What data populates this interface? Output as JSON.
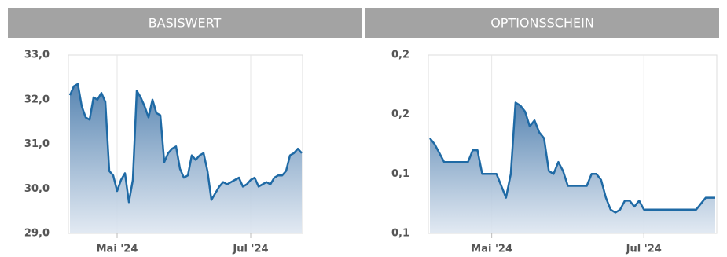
{
  "header": {
    "tabs": [
      "BASISWERT",
      "OPTIONSSCHEIN"
    ]
  },
  "chart_data": [
    {
      "type": "area",
      "color": "#1f6aa5",
      "grid": true,
      "categories": [
        null,
        null,
        null,
        null,
        null,
        null,
        null,
        null,
        null,
        null,
        null,
        null,
        "Mai '24",
        null,
        null,
        null,
        null,
        null,
        null,
        null,
        null,
        null,
        null,
        null,
        null,
        null,
        null,
        null,
        null,
        null,
        null,
        null,
        null,
        null,
        null,
        null,
        null,
        null,
        null,
        null,
        null,
        null,
        null,
        null,
        null,
        null,
        "Jul '24",
        null,
        null,
        null,
        null,
        null,
        null,
        null,
        null,
        null,
        null,
        null,
        null,
        null
      ],
      "values": [
        32.1,
        32.3,
        32.35,
        31.85,
        31.6,
        31.55,
        32.05,
        32.0,
        32.15,
        31.95,
        30.4,
        30.3,
        29.95,
        30.2,
        30.35,
        29.7,
        30.2,
        32.2,
        32.05,
        31.85,
        31.6,
        32.0,
        31.7,
        31.65,
        30.6,
        30.8,
        30.9,
        30.95,
        30.45,
        30.25,
        30.3,
        30.75,
        30.65,
        30.75,
        30.8,
        30.4,
        29.75,
        29.9,
        30.05,
        30.15,
        30.1,
        30.15,
        30.2,
        30.25,
        30.05,
        30.1,
        30.2,
        30.25,
        30.05,
        30.1,
        30.15,
        30.1,
        30.25,
        30.3,
        30.3,
        30.4,
        30.75,
        30.8,
        30.9,
        30.8
      ],
      "ylim": [
        29,
        33
      ],
      "yticks": [
        {
          "value": 33,
          "label": "33,0"
        },
        {
          "value": 32,
          "label": "32,0"
        },
        {
          "value": 31,
          "label": "31,0"
        },
        {
          "value": 30,
          "label": "30,0"
        },
        {
          "value": 29,
          "label": "29,0"
        }
      ]
    },
    {
      "type": "area",
      "color": "#1f6aa5",
      "grid": true,
      "categories": [
        null,
        null,
        null,
        null,
        null,
        null,
        null,
        null,
        null,
        null,
        null,
        null,
        null,
        "Mai '24",
        null,
        null,
        null,
        null,
        null,
        null,
        null,
        null,
        null,
        null,
        null,
        null,
        null,
        null,
        null,
        null,
        null,
        null,
        null,
        null,
        null,
        null,
        null,
        null,
        null,
        null,
        null,
        null,
        null,
        null,
        null,
        "Jul '24",
        null,
        null,
        null,
        null,
        null,
        null,
        null,
        null,
        null,
        null,
        null,
        null,
        null,
        null,
        null
      ],
      "values": [
        0.152,
        0.15,
        0.147,
        0.144,
        0.144,
        0.144,
        0.144,
        0.144,
        0.144,
        0.148,
        0.148,
        0.14,
        0.14,
        0.14,
        0.14,
        0.136,
        0.132,
        0.14,
        0.164,
        0.163,
        0.161,
        0.156,
        0.158,
        0.154,
        0.152,
        0.141,
        0.14,
        0.144,
        0.141,
        0.136,
        0.136,
        0.136,
        0.136,
        0.136,
        0.14,
        0.14,
        0.138,
        0.132,
        0.128,
        0.127,
        0.128,
        0.131,
        0.131,
        0.129,
        0.131,
        0.128,
        0.128,
        0.128,
        0.128,
        0.128,
        0.128,
        0.128,
        0.128,
        0.128,
        0.128,
        0.128,
        0.128,
        0.13,
        0.132,
        0.132,
        0.132
      ],
      "ylim": [
        0.12,
        0.18
      ],
      "yticks": [
        {
          "value": 0.18,
          "label": "0,2"
        },
        {
          "value": 0.16,
          "label": "0,2"
        },
        {
          "value": 0.14,
          "label": "0,1"
        },
        {
          "value": 0.12,
          "label": "0,1"
        }
      ]
    }
  ]
}
